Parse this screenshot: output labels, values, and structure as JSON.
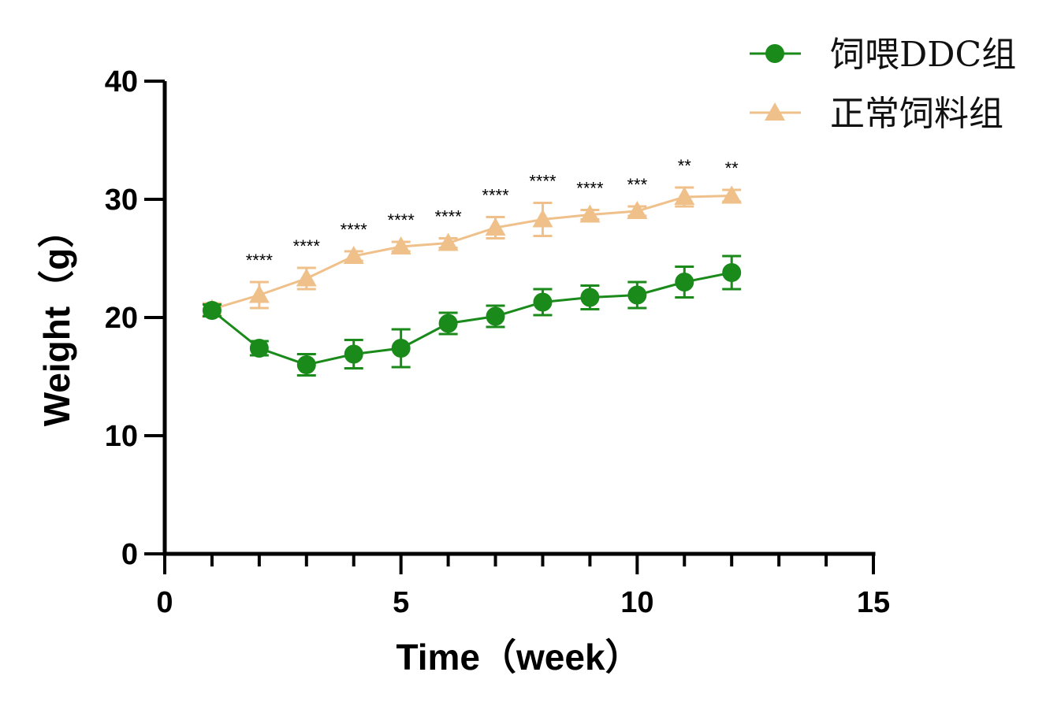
{
  "chart_data": {
    "type": "line",
    "xlabel": "Time（week）",
    "ylabel": "Weight（g）",
    "xlim": [
      0,
      15
    ],
    "ylim": [
      0,
      40
    ],
    "xticks": [
      0,
      5,
      10,
      15
    ],
    "yticks": [
      0,
      10,
      20,
      30,
      40
    ],
    "x_minor_step": 1,
    "grid": false,
    "legend_position": "top-right",
    "x": [
      1,
      2,
      3,
      4,
      5,
      6,
      7,
      8,
      9,
      10,
      11,
      12
    ],
    "series": [
      {
        "name": "饲喂DDC组",
        "marker": "circle",
        "color": "#1a8a1a",
        "values": [
          20.6,
          17.4,
          16.0,
          16.9,
          17.4,
          19.5,
          20.1,
          21.3,
          21.7,
          21.9,
          23.0,
          23.8
        ],
        "errors": [
          0.5,
          0.6,
          0.9,
          1.2,
          1.6,
          0.9,
          0.9,
          1.1,
          1.0,
          1.1,
          1.3,
          1.4
        ]
      },
      {
        "name": "正常饲料组",
        "marker": "triangle",
        "color": "#f0c08a",
        "values": [
          20.7,
          21.9,
          23.3,
          25.2,
          26.0,
          26.3,
          27.6,
          28.3,
          28.7,
          29.0,
          30.2,
          30.3
        ],
        "errors": [
          0.5,
          1.1,
          0.9,
          0.4,
          0.4,
          0.4,
          0.9,
          1.4,
          0.4,
          0.4,
          0.8,
          0.5
        ]
      }
    ],
    "annotations": [
      {
        "x": 2,
        "text": "****"
      },
      {
        "x": 3,
        "text": "****"
      },
      {
        "x": 4,
        "text": "****"
      },
      {
        "x": 5,
        "text": "****"
      },
      {
        "x": 6,
        "text": "****"
      },
      {
        "x": 7,
        "text": "****"
      },
      {
        "x": 8,
        "text": "****"
      },
      {
        "x": 9,
        "text": "****"
      },
      {
        "x": 10,
        "text": "***"
      },
      {
        "x": 11,
        "text": "**"
      },
      {
        "x": 12,
        "text": "**"
      }
    ]
  }
}
